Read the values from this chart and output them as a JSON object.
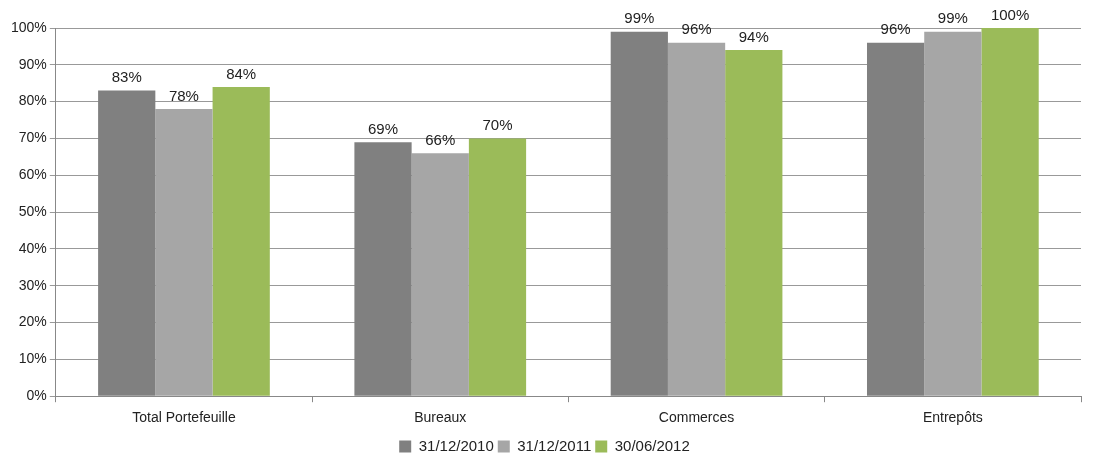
{
  "chart_data": {
    "type": "bar",
    "categories": [
      "Total Portefeuille",
      "Bureaux",
      "Commerces",
      "Entrepôts"
    ],
    "series": [
      {
        "name": "31/12/2010",
        "color": "#808080",
        "values": [
          83,
          69,
          99,
          96
        ],
        "value_labels": [
          "83%",
          "69%",
          "99%",
          "96%"
        ]
      },
      {
        "name": "31/12/2011",
        "color": "#a6a6a6",
        "values": [
          78,
          66,
          96,
          99
        ],
        "value_labels": [
          "78%",
          "66%",
          "96%",
          "99%"
        ]
      },
      {
        "name": "30/06/2012",
        "color": "#9bbb59",
        "values": [
          84,
          70,
          94,
          100
        ],
        "value_labels": [
          "84%",
          "70%",
          "94%",
          "100%"
        ]
      }
    ],
    "ylim": [
      0,
      100
    ],
    "yticks": [
      {
        "value": 0,
        "label": "0%"
      },
      {
        "value": 10,
        "label": "10%"
      },
      {
        "value": 20,
        "label": "20%"
      },
      {
        "value": 30,
        "label": "30%"
      },
      {
        "value": 40,
        "label": "40%"
      },
      {
        "value": 50,
        "label": "50%"
      },
      {
        "value": 60,
        "label": "60%"
      },
      {
        "value": 70,
        "label": "70%"
      },
      {
        "value": 80,
        "label": "80%"
      },
      {
        "value": 90,
        "label": "90%"
      },
      {
        "value": 100,
        "label": "100%"
      }
    ],
    "grid": "y",
    "legend": "bottom"
  }
}
